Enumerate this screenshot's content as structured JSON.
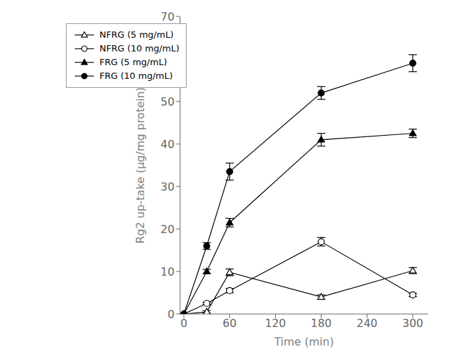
{
  "chart_data": {
    "type": "line",
    "xlabel": "Time (min)",
    "ylabel": "Rg2 up-take (μg/mg protein)",
    "xlim": [
      -5,
      320
    ],
    "ylim": [
      0,
      70
    ],
    "xticks": [
      0,
      60,
      120,
      180,
      240,
      300
    ],
    "yticks": [
      0,
      10,
      20,
      30,
      40,
      50,
      60,
      70
    ],
    "grid": false,
    "legend": "upper left",
    "series": [
      {
        "name": "NFRG (5 mg/mL)",
        "x": [
          0,
          30,
          60,
          180,
          300
        ],
        "values": [
          0,
          0.5,
          9.8,
          4.0,
          10.2
        ],
        "errors": [
          0,
          0.3,
          0.8,
          0.5,
          0.7
        ],
        "color": "#000000",
        "marker": "open-triangle"
      },
      {
        "name": "NFRG (10 mg/mL)",
        "x": [
          0,
          30,
          60,
          180,
          300
        ],
        "values": [
          0,
          2.5,
          5.5,
          17.0,
          4.5
        ],
        "errors": [
          0,
          0.3,
          0.5,
          1.0,
          0.4
        ],
        "color": "#000000",
        "marker": "open-circle"
      },
      {
        "name": "FRG (5 mg/mL)",
        "x": [
          0,
          30,
          60,
          180,
          300
        ],
        "values": [
          0,
          10.0,
          21.5,
          41.0,
          42.5
        ],
        "errors": [
          0,
          0.5,
          1.0,
          1.5,
          1.0
        ],
        "color": "#000000",
        "marker": "triangle"
      },
      {
        "name": "FRG (10 mg/mL)",
        "x": [
          0,
          30,
          60,
          180,
          300
        ],
        "values": [
          0,
          16.0,
          33.5,
          52.0,
          59.0
        ],
        "errors": [
          0,
          0.8,
          2.0,
          1.5,
          2.0
        ],
        "color": "#000000",
        "marker": "circle"
      }
    ]
  }
}
